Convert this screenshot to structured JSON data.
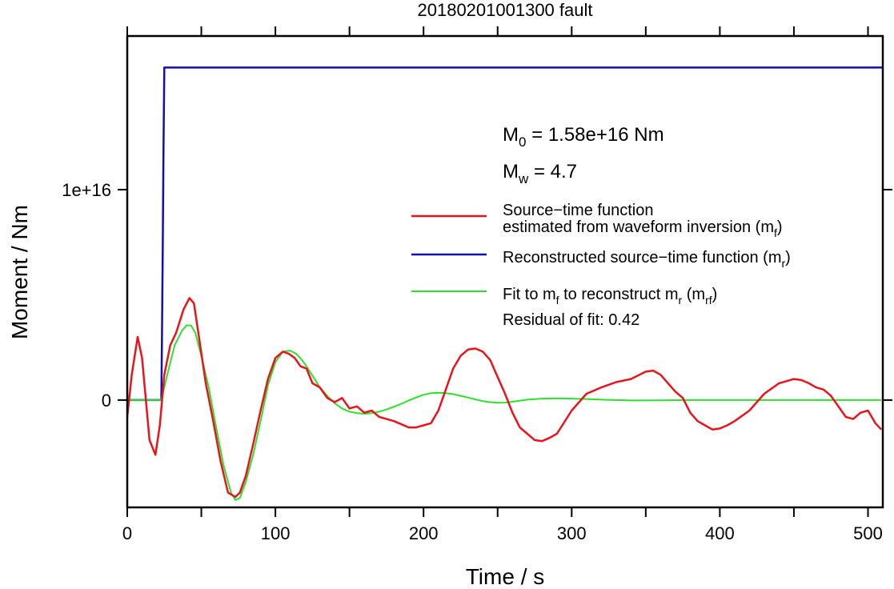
{
  "chart_data": {
    "type": "line",
    "title": "20180201001300 fault",
    "xlabel": "Time / s",
    "ylabel": "Moment / Nm",
    "xlim": [
      0,
      510
    ],
    "ylim": [
      -5100000000000000.0,
      1.73e+16
    ],
    "x_ticks": [
      {
        "value": 0,
        "label": "0"
      },
      {
        "value": 100,
        "label": "100"
      },
      {
        "value": 200,
        "label": "200"
      },
      {
        "value": 300,
        "label": "300"
      },
      {
        "value": 400,
        "label": "400"
      },
      {
        "value": 500,
        "label": "500"
      }
    ],
    "x_minor_ticks": [
      50,
      150,
      250,
      350,
      450
    ],
    "y_ticks": [
      {
        "value": 0,
        "label": "0"
      },
      {
        "value": 1e+16,
        "label": "1e+16"
      }
    ],
    "grid": false,
    "legend_position": "right",
    "annotations": {
      "m0": {
        "prefix": "M",
        "sub": "0",
        "text": " = 1.58e+16 Nm"
      },
      "mw": {
        "prefix": "M",
        "sub": "w",
        "text": " = 4.7"
      },
      "residual": "Residual of fit: 0.42"
    },
    "legend": [
      {
        "key": "mf",
        "color": "#e8141a",
        "lines": [
          {
            "text": "Source−time function"
          },
          {
            "text": "estimated from waveform inversion (m",
            "sub": "f",
            "tail": ")"
          }
        ]
      },
      {
        "key": "mr",
        "color": "#1010b0",
        "lines": [
          {
            "text": "Reconstructed source−time function (m",
            "sub": "r",
            "tail": ")"
          }
        ]
      },
      {
        "key": "mrf",
        "color": "#2ee02e",
        "lines": [
          {
            "text": "Fit to m",
            "sub": "f",
            "text2": " to reconstruct m",
            "sub2": "r",
            "text3": " (m",
            "sub3": "rf",
            "tail": ")"
          }
        ]
      }
    ],
    "series": [
      {
        "key": "mf",
        "color": "#e8141a",
        "x": [
          0,
          3,
          7,
          10,
          15,
          19,
          22,
          25,
          29,
          33,
          38,
          42,
          45,
          48,
          53,
          58,
          63,
          68,
          73,
          76,
          80,
          85,
          90,
          95,
          100,
          105,
          109,
          113,
          117,
          121,
          125,
          130,
          135,
          140,
          145,
          150,
          155,
          160,
          165,
          170,
          180,
          190,
          195,
          200,
          205,
          210,
          215,
          220,
          225,
          230,
          235,
          240,
          245,
          250,
          255,
          260,
          265,
          270,
          275,
          280,
          285,
          290,
          300,
          310,
          320,
          330,
          340,
          350,
          355,
          360,
          365,
          370,
          375,
          380,
          385,
          390,
          395,
          400,
          405,
          410,
          420,
          430,
          440,
          450,
          455,
          460,
          465,
          470,
          475,
          480,
          485,
          490,
          495,
          500,
          505,
          509
        ],
        "y": [
          -800000000000000.0,
          1200000000000000.0,
          3000000000000000.0,
          2000000000000000.0,
          -1900000000000000.0,
          -2600000000000000.0,
          -1200000000000000.0,
          1200000000000000.0,
          2600000000000000.0,
          3200000000000000.0,
          4300000000000000.0,
          4850000000000000.0,
          4600000000000000.0,
          3200000000000000.0,
          800000000000000.0,
          -1000000000000000.0,
          -2900000000000000.0,
          -4400000000000000.0,
          -4600000000000000.0,
          -4400000000000000.0,
          -3600000000000000.0,
          -2100000000000000.0,
          -500000000000000.0,
          1000000000000000.0,
          2000000000000000.0,
          2300000000000000.0,
          2200000000000000.0,
          2000000000000000.0,
          1600000000000000.0,
          1500000000000000.0,
          800000000000000.0,
          600000000000000.0,
          100000000000000.0,
          -100000000000000.0,
          100000000000000.0,
          -400000000000000.0,
          -300000000000000.0,
          -600000000000000.0,
          -500000000000000.0,
          -800000000000000.0,
          -1000000000000000.0,
          -1300000000000000.0,
          -1300000000000000.0,
          -1200000000000000.0,
          -1100000000000000.0,
          -500000000000000.0,
          500000000000000.0,
          1500000000000000.0,
          2100000000000000.0,
          2400000000000000.0,
          2450000000000000.0,
          2300000000000000.0,
          1900000000000000.0,
          1100000000000000.0,
          300000000000000.0,
          -600000000000000.0,
          -1300000000000000.0,
          -1600000000000000.0,
          -1900000000000000.0,
          -1950000000000000.0,
          -1800000000000000.0,
          -1600000000000000.0,
          -500000000000000.0,
          300000000000000.0,
          600000000000000.0,
          850000000000000.0,
          1000000000000000.0,
          1350000000000000.0,
          1400000000000000.0,
          1200000000000000.0,
          800000000000000.0,
          400000000000000.0,
          100000000000000.0,
          -600000000000000.0,
          -1000000000000000.0,
          -1200000000000000.0,
          -1400000000000000.0,
          -1350000000000000.0,
          -1200000000000000.0,
          -1000000000000000.0,
          -500000000000000.0,
          300000000000000.0,
          800000000000000.0,
          1000000000000000.0,
          950000000000000.0,
          800000000000000.0,
          600000000000000.0,
          500000000000000.0,
          200000000000000.0,
          -300000000000000.0,
          -800000000000000.0,
          -900000000000000.0,
          -600000000000000.0,
          -500000000000000.0,
          -1100000000000000.0,
          -1400000000000000.0
        ]
      },
      {
        "key": "mr",
        "color": "#1010b0",
        "x": [
          0,
          23,
          23.5,
          24,
          24.5,
          25,
          510
        ],
        "y": [
          0,
          0,
          3500000000000000.0,
          7500000000000000.0,
          1.2e+16,
          1.58e+16,
          1.58e+16
        ]
      },
      {
        "key": "mrf",
        "color": "#2ee02e",
        "x": [
          0,
          23,
          27,
          32,
          37,
          40,
          43,
          46,
          50,
          55,
          60,
          65,
          70,
          73,
          76,
          80,
          85,
          90,
          95,
          100,
          105,
          110,
          114,
          118,
          122,
          126,
          130,
          135,
          140,
          145,
          150,
          155,
          160,
          165,
          170,
          175,
          180,
          185,
          190,
          195,
          200,
          205,
          210,
          215,
          220,
          225,
          230,
          235,
          240,
          245,
          250,
          255,
          260,
          270,
          280,
          290,
          300,
          310,
          320,
          330,
          340,
          360,
          380,
          400,
          420,
          440,
          460,
          480,
          500,
          509
        ],
        "y": [
          0,
          0,
          1200000000000000.0,
          2600000000000000.0,
          3300000000000000.0,
          3550000000000000.0,
          3550000000000000.0,
          3200000000000000.0,
          2100000000000000.0,
          600000000000000.0,
          -1300000000000000.0,
          -3100000000000000.0,
          -4400000000000000.0,
          -4750000000000000.0,
          -4650000000000000.0,
          -3900000000000000.0,
          -2600000000000000.0,
          -1000000000000000.0,
          700000000000000.0,
          1800000000000000.0,
          2300000000000000.0,
          2350000000000000.0,
          2200000000000000.0,
          1900000000000000.0,
          1500000000000000.0,
          1050000000000000.0,
          600000000000000.0,
          200000000000000.0,
          -150000000000000.0,
          -400000000000000.0,
          -550000000000000.0,
          -620000000000000.0,
          -650000000000000.0,
          -620000000000000.0,
          -550000000000000.0,
          -450000000000000.0,
          -320000000000000.0,
          -180000000000000.0,
          -20000000000000.0,
          120000000000000.0,
          250000000000000.0,
          330000000000000.0,
          350000000000000.0,
          330000000000000.0,
          280000000000000.0,
          200000000000000.0,
          120000000000000.0,
          30000000000000.0,
          -50000000000000.0,
          -100000000000000.0,
          -130000000000000.0,
          -120000000000000.0,
          -80000000000000.0,
          20000000000000.0,
          70000000000000.0,
          80000000000000.0,
          70000000000000.0,
          50000000000000.0,
          20000000000000.0,
          0,
          -20000000000000.0,
          -10000000000000.0,
          0,
          0,
          0,
          0,
          0,
          0,
          0,
          0
        ]
      }
    ]
  }
}
